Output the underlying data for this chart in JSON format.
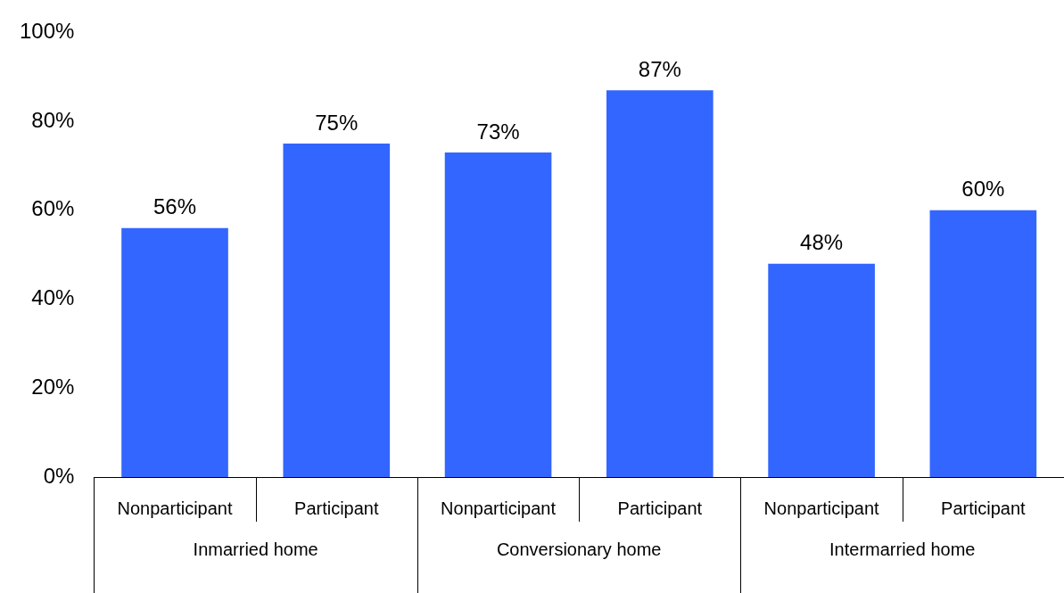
{
  "chart_data": {
    "type": "bar",
    "categories": [
      "Nonparticipant",
      "Participant",
      "Nonparticipant",
      "Participant",
      "Nonparticipant",
      "Participant"
    ],
    "values": [
      56,
      75,
      73,
      87,
      48,
      60
    ],
    "value_labels": [
      "56%",
      "75%",
      "73%",
      "87%",
      "48%",
      "60%"
    ],
    "color": "#3366ff",
    "ylim": [
      0,
      100
    ],
    "yticks": [
      {
        "value": 0,
        "label": "0%"
      },
      {
        "value": 20,
        "label": "20%"
      },
      {
        "value": 40,
        "label": "40%"
      },
      {
        "value": 60,
        "label": "60%"
      },
      {
        "value": 80,
        "label": "80%"
      },
      {
        "value": 100,
        "label": "100%"
      }
    ],
    "grid": false,
    "legend": false,
    "annotations": [
      "Inmarried home",
      "Conversionary home",
      "Intermarried home"
    ]
  }
}
